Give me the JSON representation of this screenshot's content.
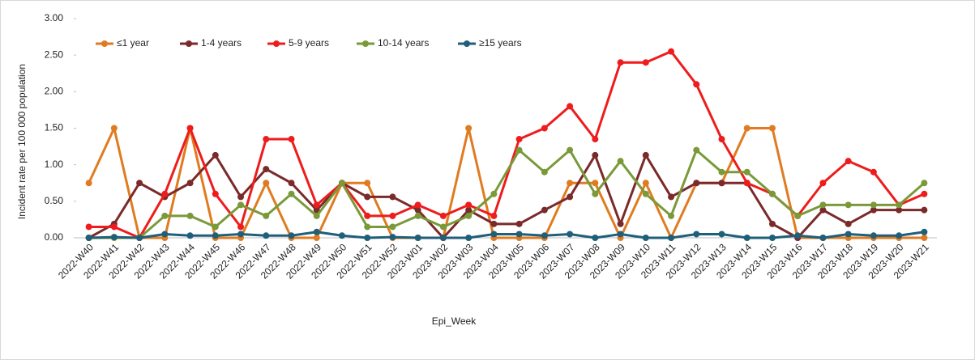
{
  "chart_data": {
    "type": "line",
    "x_label": "Epi_Week",
    "y_label": "Incident rate  per 100 000 population",
    "categories": [
      "2022-W40",
      "2022-W41",
      "2022-W42",
      "2022-W43",
      "2022-W44",
      "2022-W45",
      "2022-W46",
      "2022-W47",
      "2022-W48",
      "2022-W49",
      "2022-W50",
      "2022-W51",
      "2022-W52",
      "2023-W01",
      "2023-W02",
      "2023-W03",
      "2023-W04",
      "2023-W05",
      "2023-W06",
      "2023-W07",
      "2023-W08",
      "2023-W09",
      "2023-W10",
      "2023-W11",
      "2023-W12",
      "2023-W13",
      "2023-W14",
      "2023-W15",
      "2023-W16",
      "2023-W17",
      "2023-W18",
      "2023-W19",
      "2023-W20",
      "2023-W21"
    ],
    "ylim": [
      0,
      3
    ],
    "yticks": [
      {
        "value": 0,
        "label": "0.00"
      },
      {
        "value": 0.5,
        "label": "0.50"
      },
      {
        "value": 1,
        "label": "1.00"
      },
      {
        "value": 1.5,
        "label": "1.50"
      },
      {
        "value": 2,
        "label": "2.00"
      },
      {
        "value": 2.5,
        "label": "2.50"
      },
      {
        "value": 3,
        "label": "3.00"
      }
    ],
    "grid": false,
    "legend": "top-left",
    "series": [
      {
        "name": "≤1 year",
        "color": "#e07b20",
        "values": [
          0.75,
          1.5,
          0,
          0,
          1.5,
          0,
          0,
          0.75,
          0,
          0,
          0.75,
          0.75,
          0,
          0,
          0,
          1.5,
          0,
          0,
          0,
          0.75,
          0.75,
          0,
          0.75,
          0,
          0.75,
          0.75,
          1.5,
          1.5,
          0,
          0,
          0,
          0,
          0,
          0
        ]
      },
      {
        "name": "1-4 years",
        "color": "#7b2a2a",
        "values": [
          0,
          0.19,
          0.75,
          0.56,
          0.75,
          1.13,
          0.56,
          0.94,
          0.75,
          0.38,
          0.75,
          0.56,
          0.56,
          0.38,
          0,
          0.38,
          0.19,
          0.19,
          0.38,
          0.56,
          1.13,
          0.19,
          1.13,
          0.56,
          0.75,
          0.75,
          0.75,
          0.19,
          0,
          0.38,
          0.19,
          0.38,
          0.38,
          0.38
        ]
      },
      {
        "name": "5-9 years",
        "color": "#ee1c1c",
        "values": [
          0.15,
          0.15,
          0,
          0.6,
          1.5,
          0.6,
          0.15,
          1.35,
          1.35,
          0.45,
          0.75,
          0.3,
          0.3,
          0.45,
          0.3,
          0.45,
          0.3,
          1.35,
          1.5,
          1.8,
          1.35,
          2.4,
          2.4,
          2.55,
          2.1,
          1.35,
          0.75,
          0.6,
          0.3,
          0.75,
          1.05,
          0.9,
          0.45,
          0.6
        ]
      },
      {
        "name": "10-14 years",
        "color": "#7a9a3a",
        "values": [
          0,
          0,
          0,
          0.3,
          0.3,
          0.15,
          0.45,
          0.3,
          0.6,
          0.3,
          0.75,
          0.15,
          0.15,
          0.3,
          0.15,
          0.3,
          0.6,
          1.2,
          0.9,
          1.2,
          0.6,
          1.05,
          0.6,
          0.3,
          1.2,
          0.9,
          0.9,
          0.6,
          0.3,
          0.45,
          0.45,
          0.45,
          0.45,
          0.75
        ]
      },
      {
        "name": "≥15 years",
        "color": "#1f5f7a",
        "values": [
          0,
          0.01,
          0,
          0.05,
          0.03,
          0.03,
          0.05,
          0.03,
          0.03,
          0.08,
          0.03,
          0,
          0.01,
          0,
          0,
          0,
          0.05,
          0.05,
          0.03,
          0.05,
          0,
          0.05,
          0,
          0,
          0.05,
          0.05,
          0,
          0,
          0.03,
          0,
          0.05,
          0.03,
          0.03,
          0.08
        ]
      }
    ]
  }
}
